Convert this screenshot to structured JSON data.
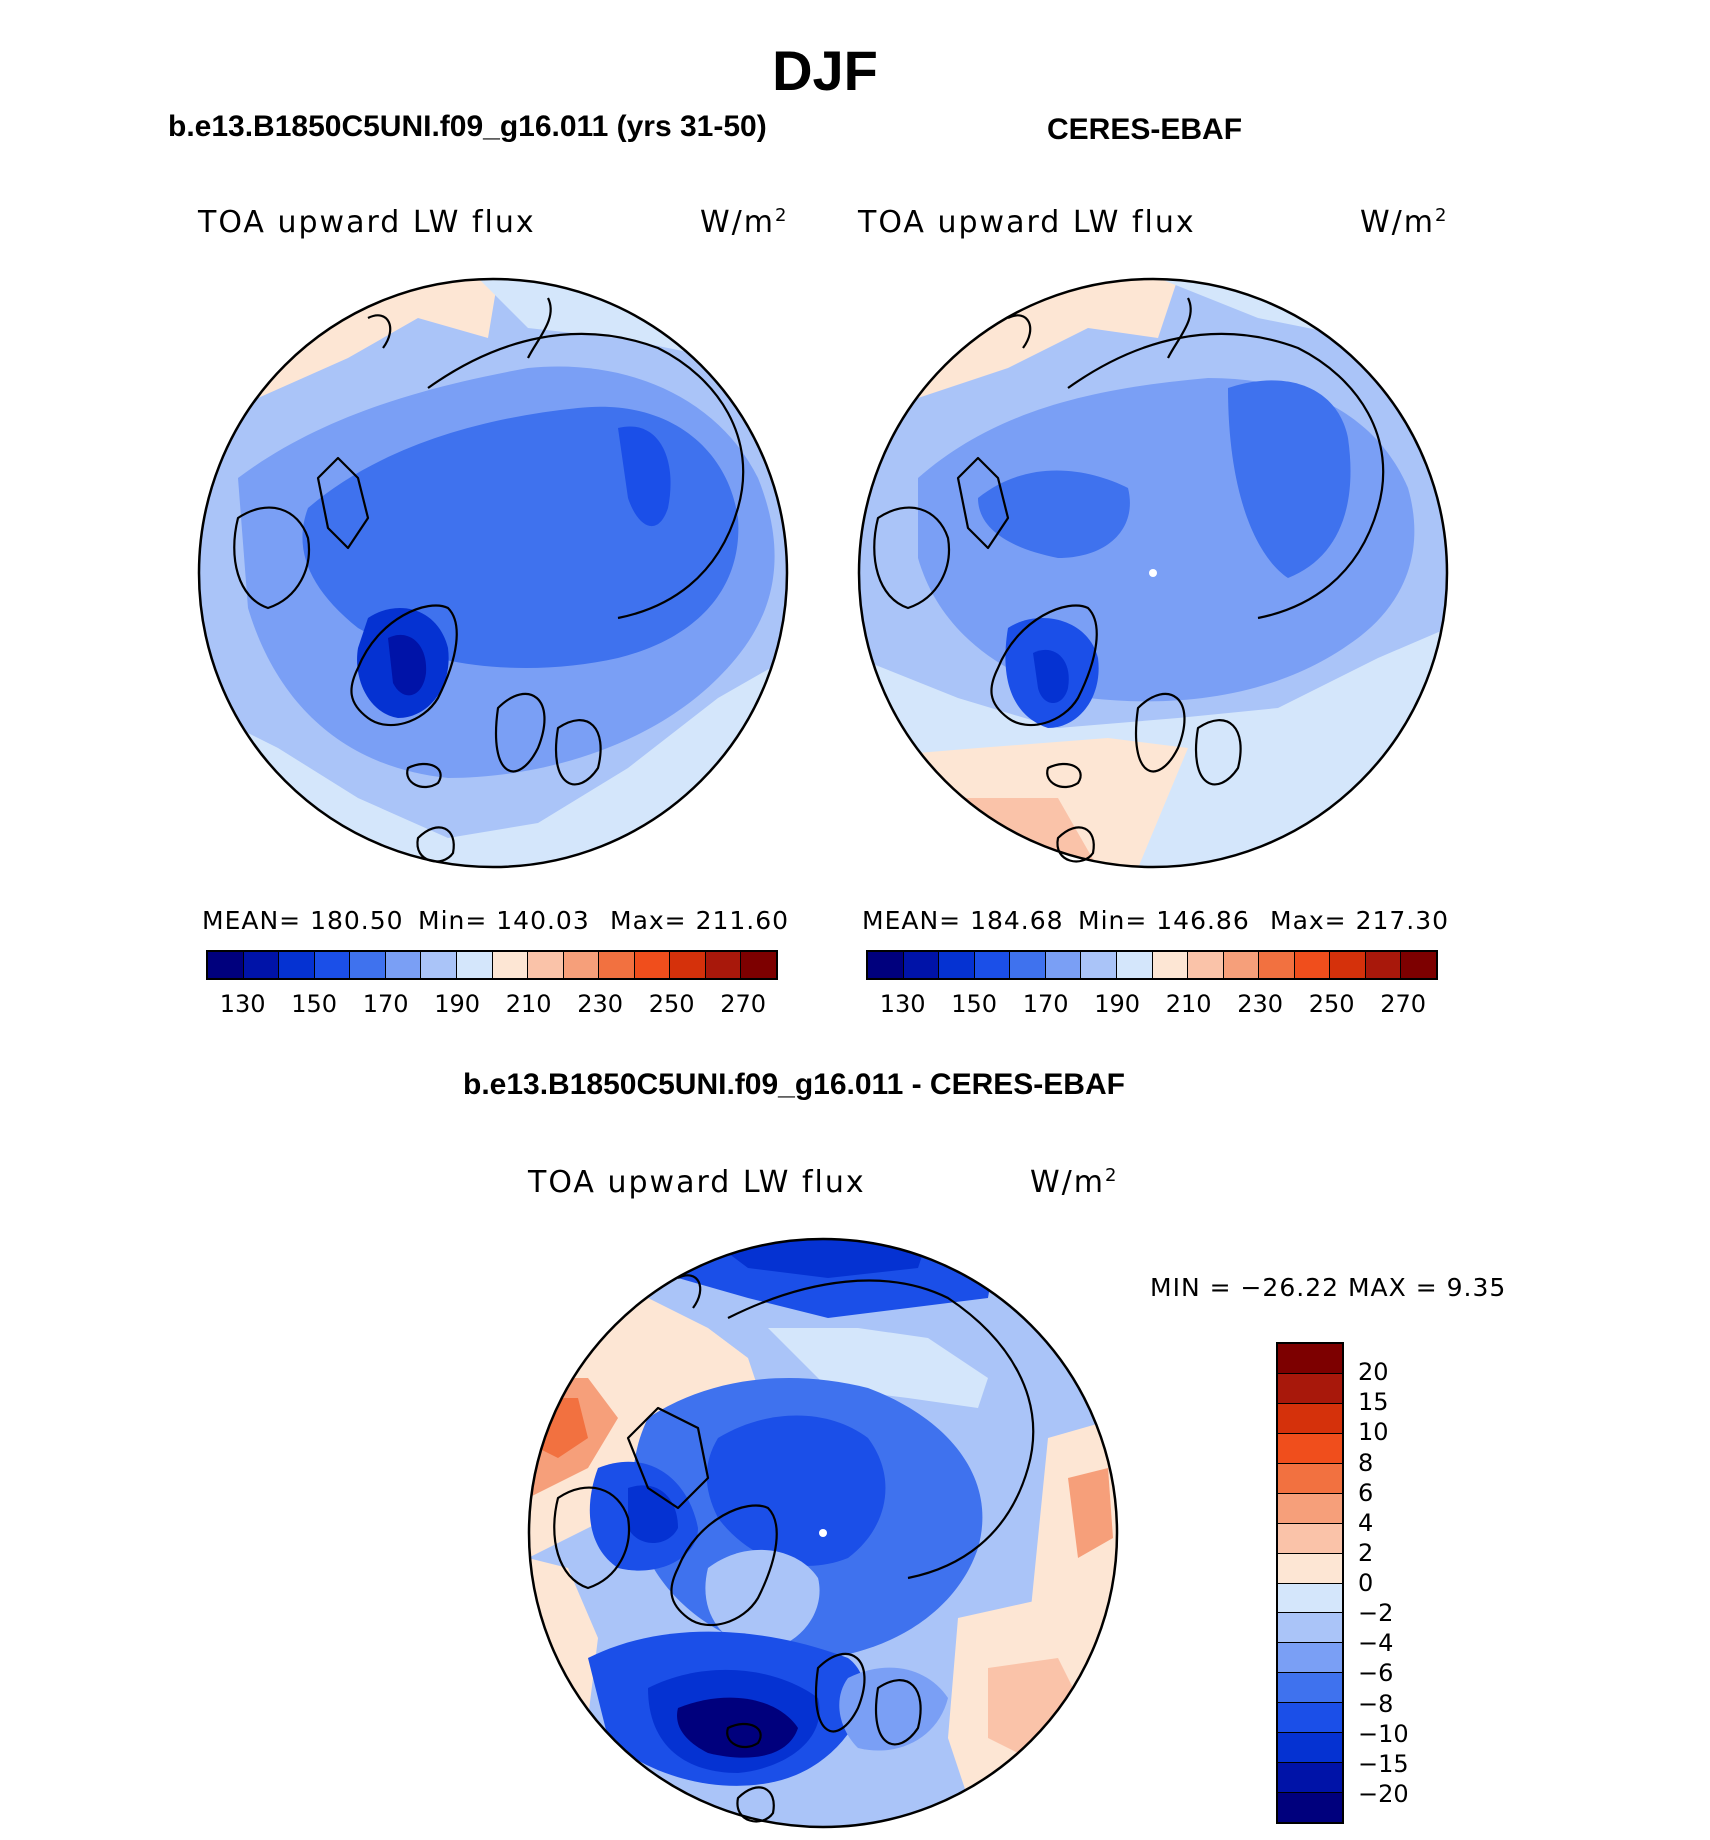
{
  "title": "DJF",
  "panels": [
    {
      "title": "b.e13.B1850C5UNI.f09_g16.011 (yrs 31-50)",
      "variable": "TOA upward LW flux",
      "units": "W/m",
      "units_sup": "2",
      "stats": {
        "mean": "MEAN=  180.50",
        "min": "Min=  140.03",
        "max": "Max=  211.60"
      }
    },
    {
      "title": "CERES-EBAF",
      "variable": "TOA upward LW flux",
      "units": "W/m",
      "units_sup": "2",
      "stats": {
        "mean": "MEAN=  184.68",
        "min": "Min=  146.86",
        "max": "Max=  217.30"
      }
    }
  ],
  "diff_panel": {
    "title": "b.e13.B1850C5UNI.f09_g16.011 - CERES-EBAF",
    "variable": "TOA upward LW flux",
    "units": "W/m",
    "units_sup": "2",
    "minmax": "MIN = −26.22 MAX =    9.35"
  },
  "colorbars": {
    "abs_colors": [
      "#00007d",
      "#0013a8",
      "#0532d2",
      "#1b4fe8",
      "#3f72ee",
      "#7a9ff5",
      "#aac4f8",
      "#d4e6fb",
      "#fde6d4",
      "#fac3a9",
      "#f69f7a",
      "#f27140",
      "#f04e1c",
      "#d5310b",
      "#a8180b",
      "#7d0000"
    ],
    "abs_ticks": [
      "130",
      "150",
      "170",
      "190",
      "210",
      "230",
      "250",
      "270"
    ],
    "diff_colors": [
      "#7d0000",
      "#a8180b",
      "#d5310b",
      "#f04e1c",
      "#f27140",
      "#f69f7a",
      "#fac3a9",
      "#fde6d4",
      "#d4e6fb",
      "#aac4f8",
      "#7a9ff5",
      "#3f72ee",
      "#1b4fe8",
      "#0532d2",
      "#0013a8",
      "#00007d"
    ],
    "diff_ticks": [
      "20",
      "15",
      "10",
      "8",
      "6",
      "4",
      "2",
      "0",
      "−2",
      "−4",
      "−6",
      "−8",
      "−10",
      "−15",
      "−20"
    ]
  },
  "chart_data": [
    {
      "type": "heatmap",
      "title": "b.e13.B1850C5UNI.f09_g16.011 (yrs 31-50)",
      "variable": "TOA upward LW flux",
      "units": "W/m2",
      "projection": "north polar stereographic",
      "mean": 180.5,
      "min": 140.03,
      "max": 211.6,
      "levels": [
        130,
        140,
        150,
        160,
        170,
        180,
        190,
        200,
        210,
        220,
        230,
        240,
        250,
        260,
        270
      ]
    },
    {
      "type": "heatmap",
      "title": "CERES-EBAF",
      "variable": "TOA upward LW flux",
      "units": "W/m2",
      "projection": "north polar stereographic",
      "mean": 184.68,
      "min": 146.86,
      "max": 217.3,
      "levels": [
        130,
        140,
        150,
        160,
        170,
        180,
        190,
        200,
        210,
        220,
        230,
        240,
        250,
        260,
        270
      ]
    },
    {
      "type": "heatmap",
      "title": "b.e13.B1850C5UNI.f09_g16.011 - CERES-EBAF",
      "variable": "TOA upward LW flux",
      "units": "W/m2",
      "projection": "north polar stereographic",
      "min": -26.22,
      "max": 9.35,
      "levels": [
        -20,
        -15,
        -10,
        -8,
        -6,
        -4,
        -2,
        0,
        2,
        4,
        6,
        8,
        10,
        15,
        20
      ]
    }
  ]
}
